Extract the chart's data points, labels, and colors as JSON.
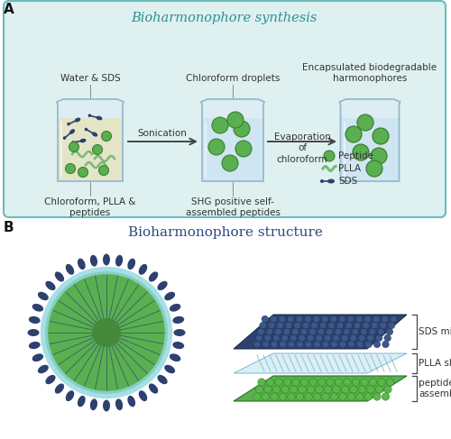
{
  "fig_width": 5.0,
  "fig_height": 4.87,
  "dpi": 100,
  "bg_color": "#ffffff",
  "panel_a_bg": "#dff0f0",
  "panel_a_border": "#6bbcbb",
  "title_a": "Bioharmonophore synthesis",
  "title_b": "Bioharmonophore structure",
  "title_a_color": "#2a9090",
  "title_b_color": "#2a4880",
  "label_a": "A",
  "label_b": "B",
  "label_color": "#111111",
  "beaker1_label_top": "Water & SDS",
  "beaker2_label_top": "Chloroform droplets",
  "beaker3_label_top": "Encapsulated biodegradable\nharmonophores",
  "beaker1_label_bot": "Chloroform, PLLA &\npeptides",
  "beaker2_label_bot": "SHG positive self-\nassembled peptides",
  "arrow1_label": "Sonication",
  "arrow2_label": "Evaporation\nof\nchloroform",
  "legend_peptide": "Peptide",
  "legend_plla": "PLLA",
  "legend_sds": "SDS",
  "peptide_color": "#5ab050",
  "peptide_edge": "#3a8030",
  "plla_color": "#8ac888",
  "sds_color": "#2d4070",
  "water_color": "#cce4f0",
  "chloroform_color": "#e8e2b8",
  "beaker_fill": "#daeef8",
  "beaker_border": "#90b8cc",
  "sds_micelle_label": "SDS micelle",
  "plla_shell_label": "PLLA shell",
  "peptide_assembly_label": "peptide self-\nassembly",
  "layer_plla_color": "#c8e8f4",
  "sphere_plla_ring": "#7cd8e0",
  "sphere_green": "#5ab050",
  "sphere_inner": "#4a9040"
}
